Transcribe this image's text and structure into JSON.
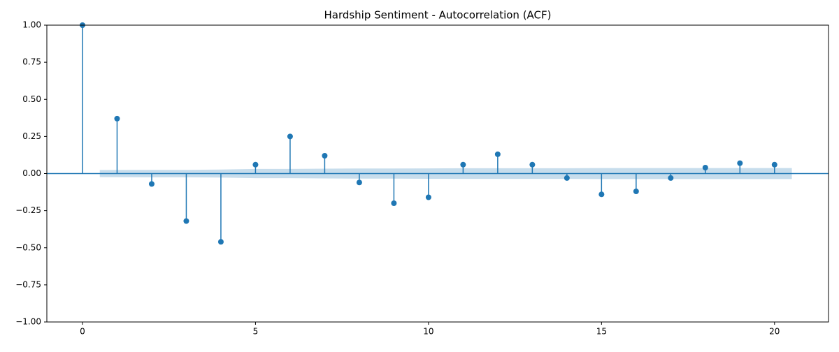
{
  "chart_data": {
    "type": "stem",
    "title": "Hardship Sentiment - Autocorrelation (ACF)",
    "x": [
      0,
      1,
      2,
      3,
      4,
      5,
      6,
      7,
      8,
      9,
      10,
      11,
      12,
      13,
      14,
      15,
      16,
      17,
      18,
      19,
      20
    ],
    "values": [
      1.0,
      0.37,
      -0.07,
      -0.32,
      -0.46,
      0.06,
      0.25,
      0.12,
      -0.06,
      -0.2,
      -0.16,
      0.06,
      0.13,
      0.06,
      -0.03,
      -0.14,
      -0.12,
      -0.03,
      0.04,
      0.07,
      0.06
    ],
    "color": "#1f77b4",
    "confidence_band": {
      "x": [
        1,
        2,
        3,
        4,
        5,
        6,
        7,
        8,
        9,
        10,
        11,
        12,
        13,
        14,
        15,
        16,
        17,
        18,
        19,
        20
      ],
      "halfwidth": [
        0.024,
        0.025,
        0.025,
        0.027,
        0.031,
        0.031,
        0.033,
        0.034,
        0.034,
        0.035,
        0.036,
        0.036,
        0.036,
        0.036,
        0.037,
        0.037,
        0.037,
        0.037,
        0.037,
        0.037
      ],
      "color": "#1f77b4"
    },
    "xlim": [
      -1.03,
      21.56
    ],
    "ylim": [
      -1,
      1
    ],
    "xticks": [
      0,
      5,
      10,
      15,
      20
    ],
    "yticks": [
      {
        "value": -1,
        "label": "−1.00"
      },
      {
        "value": -0.75,
        "label": "−0.75"
      },
      {
        "value": -0.5,
        "label": "−0.50"
      },
      {
        "value": -0.25,
        "label": "−0.25"
      },
      {
        "value": 0,
        "label": "0.00"
      },
      {
        "value": 0.25,
        "label": "0.25"
      },
      {
        "value": 0.5,
        "label": "0.50"
      },
      {
        "value": 0.75,
        "label": "0.75"
      },
      {
        "value": 1,
        "label": "1.00"
      }
    ]
  }
}
